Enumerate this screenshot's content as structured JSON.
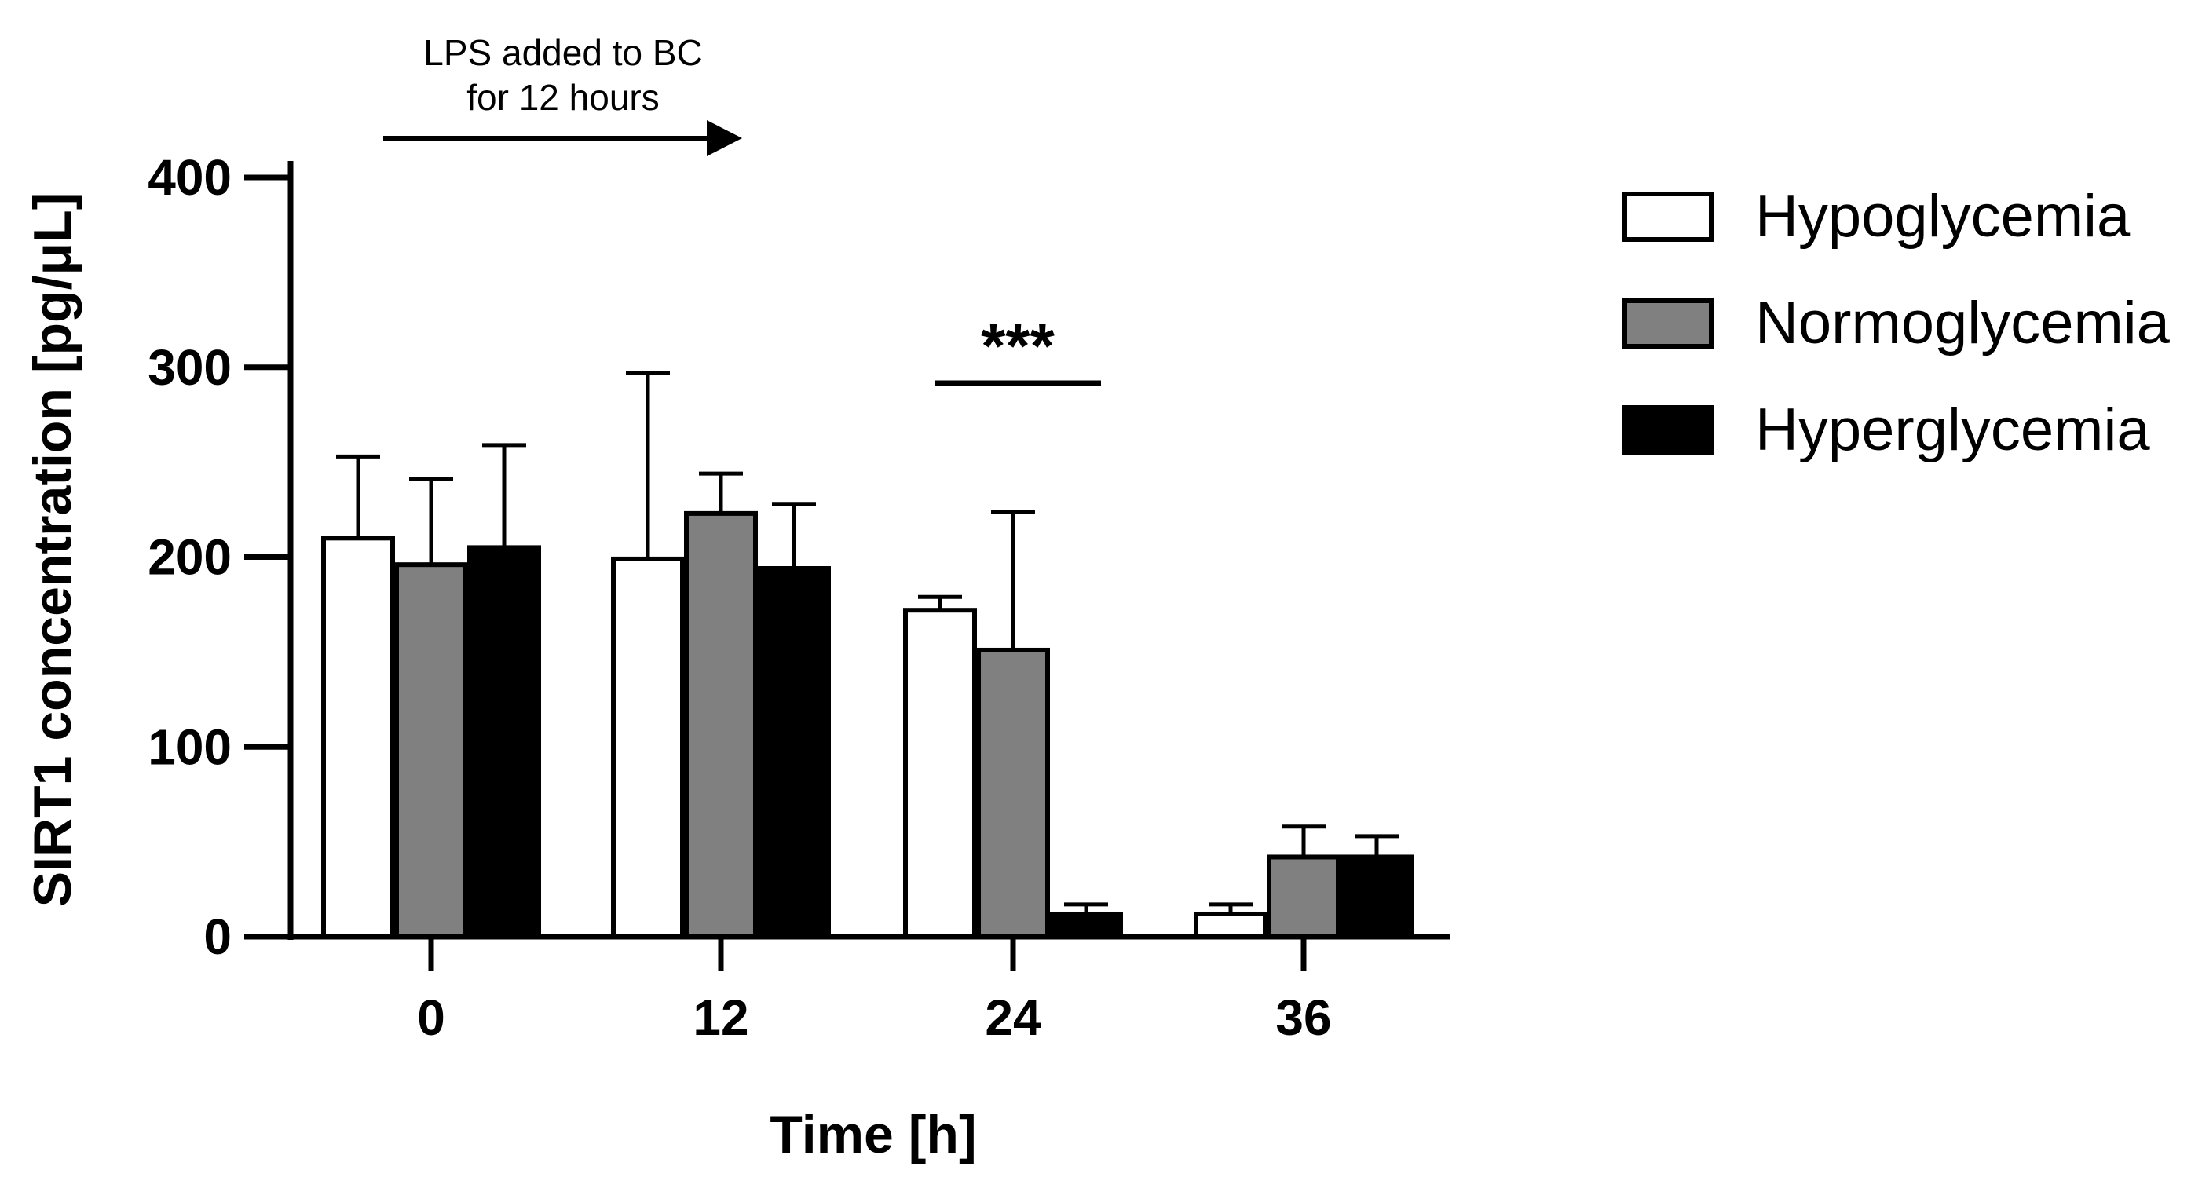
{
  "chart_data": {
    "type": "bar",
    "title": "",
    "xlabel": "Time [h]",
    "ylabel": "SIRT1 concentration [pg/μL]",
    "categories": [
      "0",
      "12",
      "24",
      "36"
    ],
    "ylim": [
      0,
      400
    ],
    "yticks": [
      0,
      100,
      200,
      300,
      400
    ],
    "grid": false,
    "legend_position": "right",
    "series": [
      {
        "name": "Hypoglycemia",
        "fill": "#ffffff",
        "values": [
          210,
          199,
          172,
          12
        ],
        "errors": [
          43,
          98,
          7,
          5
        ]
      },
      {
        "name": "Normoglycemia",
        "fill": "#808080",
        "values": [
          196,
          223,
          151,
          42
        ],
        "errors": [
          45,
          21,
          73,
          16
        ]
      },
      {
        "name": "Hyperglycemia",
        "fill": "#000000",
        "values": [
          205,
          194,
          12,
          42
        ],
        "errors": [
          54,
          34,
          5,
          11
        ]
      }
    ],
    "annotations": {
      "lps_line1": "LPS added to BC",
      "lps_line2": "for 12 hours",
      "significance": "***"
    }
  }
}
